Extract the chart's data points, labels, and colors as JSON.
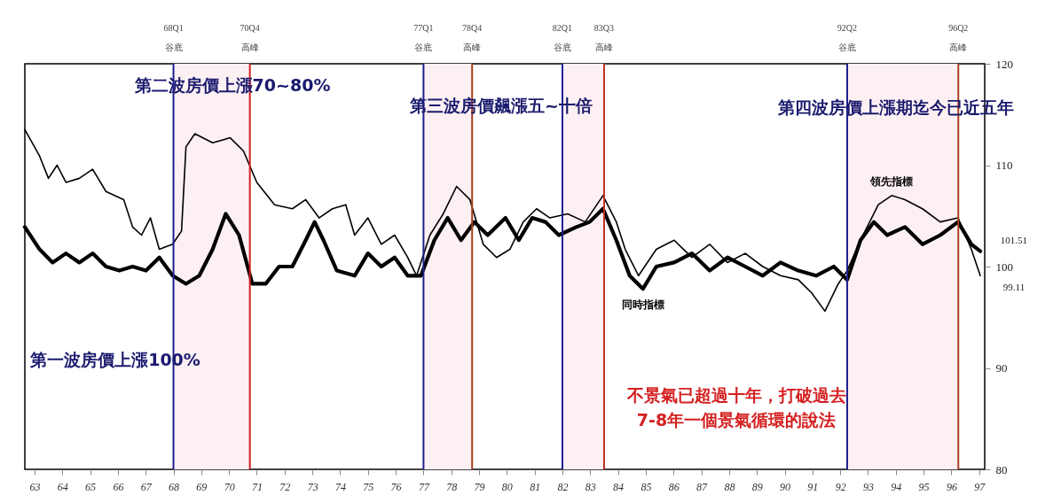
{
  "chart_data": {
    "type": "line",
    "xlim": [
      62.65,
      97.2
    ],
    "xticks": [
      63,
      64,
      65,
      66,
      67,
      68,
      69,
      70,
      71,
      72,
      73,
      74,
      75,
      76,
      77,
      78,
      79,
      80,
      81,
      82,
      83,
      84,
      85,
      86,
      87,
      88,
      89,
      90,
      91,
      92,
      93,
      94,
      95,
      96,
      97
    ],
    "ylim": [
      80,
      120
    ],
    "yticks": [
      80,
      90,
      100,
      110,
      120
    ],
    "grid": false,
    "series": [
      {
        "name": "領先指標",
        "color": "#000000",
        "line_style": "solid",
        "x": [
          62.65,
          63.18,
          63.5,
          63.81,
          64.13,
          64.61,
          65.09,
          65.57,
          66.21,
          66.53,
          66.85,
          67.17,
          67.49,
          67.97,
          68.29,
          68.45,
          68.77,
          69.41,
          70.04,
          70.52,
          71.0,
          71.64,
          72.28,
          72.76,
          73.24,
          73.72,
          74.2,
          74.52,
          75.0,
          75.48,
          75.96,
          76.43,
          76.75,
          77.23,
          77.71,
          78.19,
          78.67,
          79.15,
          79.63,
          80.11,
          80.59,
          81.07,
          81.55,
          82.19,
          82.82,
          83.46,
          83.94,
          84.26,
          84.74,
          85.38,
          86.02,
          86.66,
          87.3,
          87.94,
          88.58,
          89.21,
          89.85,
          90.49,
          90.97,
          91.45,
          91.93,
          92.25,
          92.73,
          93.37,
          93.85,
          94.33,
          94.96,
          95.6,
          96.24,
          96.72,
          97.04
        ],
        "values": [
          113.5,
          110.9,
          108.7,
          110.0,
          108.3,
          108.7,
          109.6,
          107.4,
          106.6,
          103.9,
          103.1,
          104.8,
          101.7,
          102.2,
          103.5,
          111.8,
          113.1,
          112.2,
          112.7,
          111.4,
          108.3,
          106.1,
          105.7,
          106.6,
          104.8,
          105.7,
          106.1,
          103.1,
          104.8,
          102.2,
          103.1,
          100.9,
          99.1,
          103.1,
          105.2,
          107.9,
          106.6,
          102.2,
          100.9,
          101.7,
          104.4,
          105.7,
          104.8,
          105.2,
          104.4,
          107.0,
          104.4,
          101.7,
          99.1,
          101.7,
          102.6,
          100.9,
          102.2,
          100.4,
          101.3,
          100,
          99.1,
          98.7,
          97.4,
          95.6,
          98.3,
          99.6,
          102.6,
          106.1,
          107.0,
          106.6,
          105.7,
          104.4,
          104.8,
          101.7,
          99.11
        ]
      },
      {
        "name": "同時指標",
        "color": "#000000",
        "line_style": "solid",
        "x": [
          62.65,
          63.18,
          63.65,
          64.13,
          64.61,
          65.09,
          65.57,
          66.05,
          66.53,
          67.01,
          67.49,
          67.97,
          68.45,
          68.93,
          69.41,
          69.88,
          70.36,
          70.84,
          71.32,
          71.8,
          72.28,
          72.76,
          73.08,
          73.4,
          73.88,
          74.52,
          75.0,
          75.48,
          75.96,
          76.43,
          76.91,
          77.39,
          77.87,
          78.35,
          78.83,
          79.31,
          79.95,
          80.43,
          80.91,
          81.39,
          81.87,
          82.5,
          82.98,
          83.46,
          83.94,
          84.42,
          84.9,
          85.38,
          86.02,
          86.66,
          87.3,
          87.94,
          88.58,
          89.21,
          89.85,
          90.49,
          91.13,
          91.77,
          92.25,
          92.73,
          93.21,
          93.69,
          94.33,
          94.96,
          95.6,
          96.24,
          96.72,
          97.04
        ],
        "values": [
          103.9,
          101.7,
          100.4,
          101.3,
          100.4,
          101.3,
          100,
          99.6,
          100,
          99.6,
          100.9,
          99.1,
          98.3,
          99.1,
          101.7,
          105.2,
          103.1,
          98.3,
          98.3,
          100,
          100,
          102.6,
          104.4,
          102.6,
          99.6,
          99.1,
          101.3,
          100,
          100.9,
          99.1,
          99.1,
          102.6,
          104.8,
          102.6,
          104.4,
          103.1,
          104.8,
          102.6,
          104.8,
          104.4,
          103.1,
          103.9,
          104.4,
          105.7,
          102.6,
          99.1,
          97.8,
          100,
          100.4,
          101.3,
          99.6,
          100.9,
          100,
          99.1,
          100.4,
          99.6,
          99.1,
          100,
          98.7,
          102.6,
          104.4,
          103.1,
          103.9,
          102.2,
          103.1,
          104.4,
          102.2,
          101.51
        ]
      }
    ],
    "ref_lines": [
      {
        "axis": "x",
        "value": 68.0,
        "label": "68Q1\n谷底",
        "color": "#1f1f8f"
      },
      {
        "axis": "x",
        "value": 70.75,
        "label": "70Q4\n高峰",
        "color": "#d02020"
      },
      {
        "axis": "x",
        "value": 77.0,
        "label": "77Q1\n谷底",
        "color": "#1f1f8f"
      },
      {
        "axis": "x",
        "value": 78.75,
        "label": "78Q4\n高峰",
        "color": "#a8401f"
      },
      {
        "axis": "x",
        "value": 82.0,
        "label": "82Q1\n谷底",
        "color": "#1f1f8f"
      },
      {
        "axis": "x",
        "value": 83.5,
        "label": "83Q3\n高峰",
        "color": "#c0301f"
      },
      {
        "axis": "x",
        "value": 92.25,
        "label": "92Q2\n谷底",
        "color": "#1f1f8f"
      },
      {
        "axis": "x",
        "value": 96.25,
        "label": "96Q2\n高峰",
        "color": "#a8401f"
      }
    ],
    "bands": [
      {
        "axis": "x",
        "from": 68.0,
        "to": 70.75,
        "color": "#fdf0f3"
      },
      {
        "axis": "x",
        "from": 77.0,
        "to": 78.75,
        "color": "#fdf0f3"
      },
      {
        "axis": "x",
        "from": 82.0,
        "to": 83.5,
        "color": "#fdf0f3"
      },
      {
        "axis": "x",
        "from": 92.25,
        "to": 96.25,
        "color": "#fdf0f3"
      }
    ],
    "annotations": [
      "第二波房價上漲70~80%",
      "第三波房價飆漲五~十倍",
      "第四波房價上漲期迄今已近五年",
      "第一波房價上漲100%",
      "不景氣已超過十年，打破過去\n7-8年一個景氣循環的說法",
      {
        "text": "101.51",
        "x": 97.04,
        "y": 101.51
      },
      {
        "text": "99.11",
        "x": 97.04,
        "y": 99.11
      }
    ]
  }
}
